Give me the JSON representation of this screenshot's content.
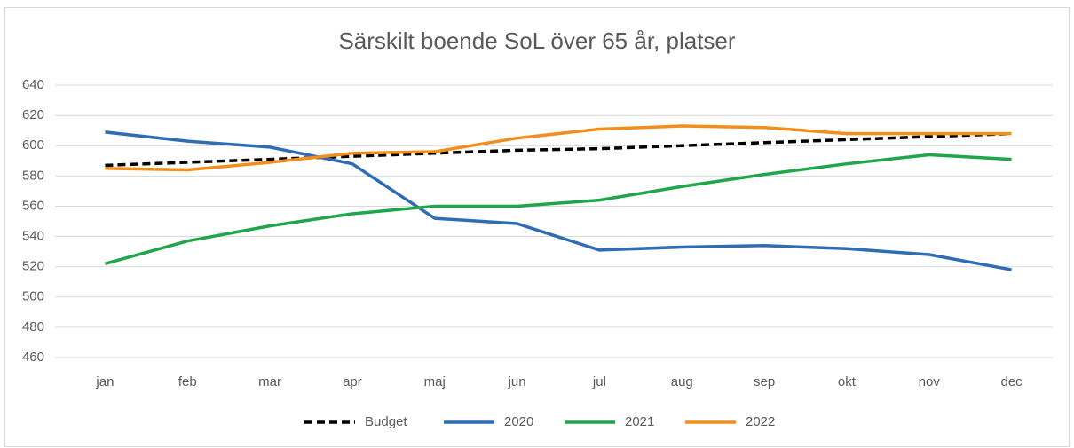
{
  "chart_data": {
    "type": "line",
    "title": "Särskilt boende SoL över 65 år, platser",
    "categories": [
      "jan",
      "feb",
      "mar",
      "apr",
      "maj",
      "jun",
      "jul",
      "aug",
      "sep",
      "okt",
      "nov",
      "dec"
    ],
    "series": [
      {
        "name": "Budget",
        "color": "#000000",
        "dashed": true,
        "values": [
          587,
          589,
          591,
          593,
          595,
          597,
          598,
          600,
          602,
          604,
          606,
          608
        ]
      },
      {
        "name": "2020",
        "color": "#2e6db4",
        "values": [
          609,
          603,
          599,
          588,
          552,
          548.5,
          531,
          533,
          534,
          532,
          528,
          518
        ]
      },
      {
        "name": "2021",
        "color": "#1fa64a",
        "values": [
          522,
          537,
          547,
          555,
          560,
          560,
          564,
          573,
          581,
          588,
          594,
          591
        ]
      },
      {
        "name": "2022",
        "color": "#f28e1c",
        "values": [
          585,
          584,
          589,
          595,
          596,
          605,
          611,
          613,
          612,
          608,
          608,
          608
        ]
      }
    ],
    "ylim": [
      460,
      640
    ],
    "yticks": [
      460,
      480,
      500,
      520,
      540,
      560,
      580,
      600,
      620,
      640
    ],
    "grid": true,
    "legend": "bottom"
  }
}
